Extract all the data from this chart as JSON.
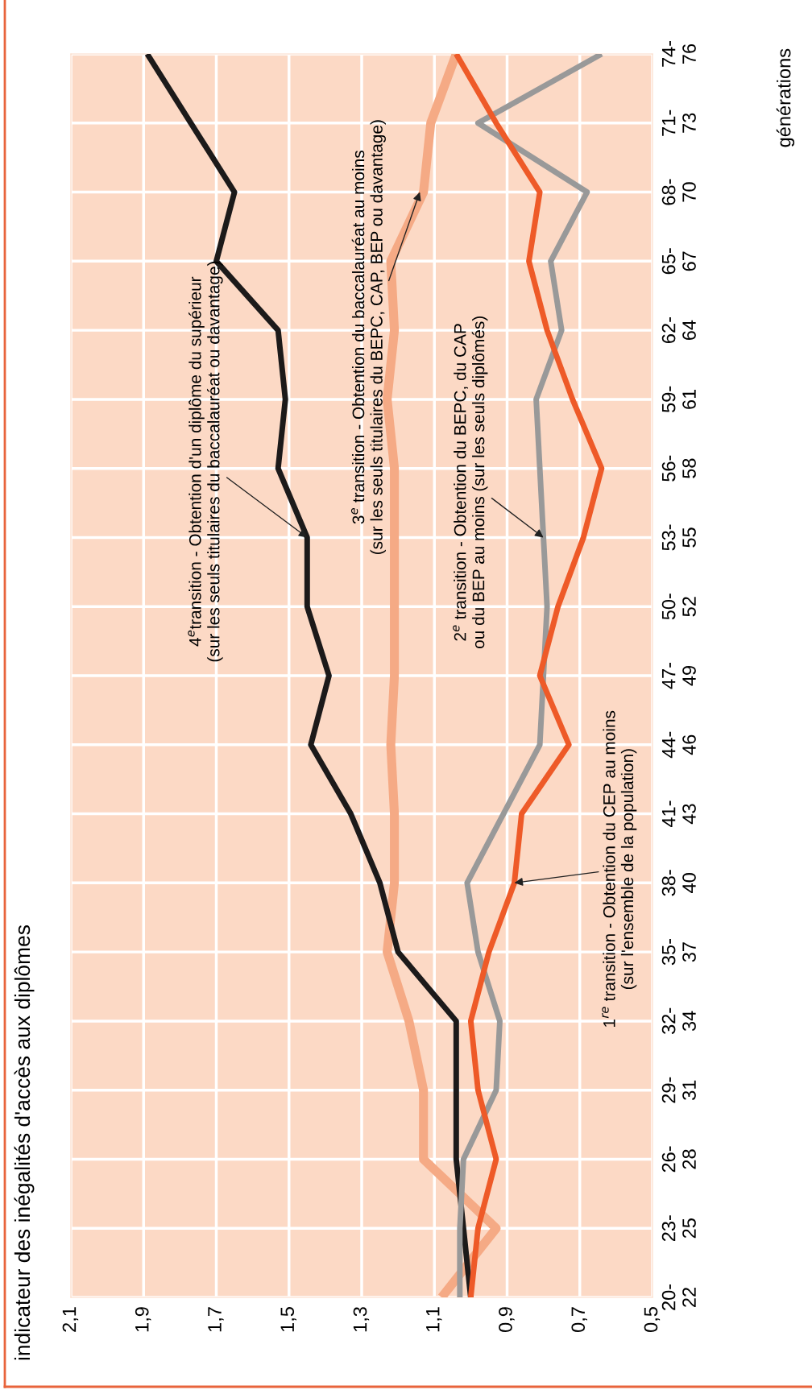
{
  "chart_data": {
    "type": "line",
    "orientation": "horizontal",
    "ylabel": "générations",
    "categories": [
      "74-\n76",
      "71-\n73",
      "68-\n70",
      "65-\n67",
      "62-\n64",
      "59-\n61",
      "56-\n58",
      "53-\n55",
      "50-\n52",
      "47-\n49",
      "44-\n46",
      "41-\n43",
      "38-\n40",
      "35-\n37",
      "32-\n34",
      "29-\n31",
      "26-\n28",
      "23-\n25",
      "20-\n22"
    ],
    "series": [
      {
        "color": "#1c1a1a",
        "values": [
          1.89,
          1.77,
          1.65,
          1.7,
          1.53,
          1.51,
          1.53,
          1.45,
          1.45,
          1.39,
          1.44,
          1.33,
          1.25,
          1.2,
          1.04,
          1.04,
          1.04,
          1.02,
          1.0
        ]
      },
      {
        "color": "#f5aa85",
        "values": [
          1.04,
          1.11,
          1.13,
          1.22,
          1.21,
          1.23,
          1.21,
          1.21,
          1.21,
          1.21,
          1.22,
          1.21,
          1.21,
          1.23,
          1.17,
          1.13,
          1.13,
          0.93,
          1.08
        ]
      },
      {
        "color": "#ee5a28",
        "values": [
          1.04,
          0.93,
          0.81,
          0.84,
          0.79,
          0.72,
          0.64,
          0.69,
          0.76,
          0.81,
          0.73,
          0.86,
          0.88,
          0.95,
          1.0,
          0.98,
          0.93,
          0.98,
          1.0
        ]
      },
      {
        "color": "#999999",
        "values": [
          0.64,
          0.98,
          0.68,
          0.78,
          0.75,
          0.82,
          0.81,
          0.8,
          0.79,
          0.8,
          0.81,
          0.91,
          1.01,
          0.98,
          0.92,
          0.93,
          1.02,
          1.03,
          1.03
        ]
      }
    ],
    "xlim": [
      2.1,
      0.5
    ],
    "xticks": [
      {
        "value": 2.1,
        "label": "2,1"
      },
      {
        "value": 1.9,
        "label": "1,9"
      },
      {
        "value": 1.7,
        "label": "1,7"
      },
      {
        "value": 1.5,
        "label": "1,5"
      },
      {
        "value": 1.3,
        "label": "1,3"
      },
      {
        "value": 1.1,
        "label": "1,1"
      },
      {
        "value": 0.9,
        "label": "0,9"
      },
      {
        "value": 0.7,
        "label": "0,7"
      },
      {
        "value": 0.5,
        "label": "0,5"
      }
    ],
    "grid": true,
    "annotations": [
      {
        "text": "4$^{e}$transition - Obtention d'un diplôme du supérieur\n(sur les seuls titulaires du baccalauréat ou davantage)",
        "x": 1.45,
        "y": "53-\n55"
      },
      {
        "text": "3$^{e}$ transition - Obtention du baccalauréat au moins\n(sur les seuls titulaires du BEPC, CAP, BEP ou davantage)",
        "x": 1.14,
        "y": "68-\n70"
      },
      {
        "text": "2$^{e}$ transition - Obtention du BEPC, du CAP\nou du BEP au moins (sur les seuls diplômés)",
        "x": 0.8,
        "y": "53-\n55"
      },
      {
        "text": "1$^{re}$ transition - Obtention du CEP au moins\n(sur l'ensemble de la population)",
        "x": 0.88,
        "y": "38-\n40"
      },
      "indicateur des inégalités d'accès aux diplômes"
    ]
  }
}
